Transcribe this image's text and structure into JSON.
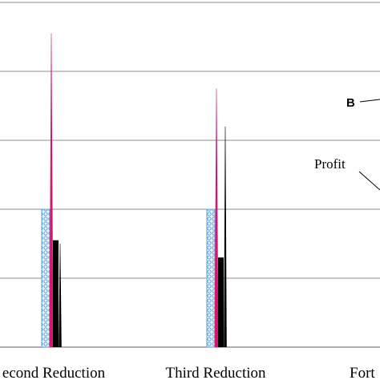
{
  "chart_data": {
    "type": "bar",
    "title": "",
    "xlabel": "",
    "ylabel": "",
    "ylim": [
      0,
      5
    ],
    "grid": true,
    "categories": [
      "Second Reduction",
      "Third Reduction",
      "Forth Reduction"
    ],
    "category_labels_visible": [
      "econd Reduction",
      "Third Reduction",
      "Fort"
    ],
    "series": [
      {
        "name": "",
        "color": "#a9cbe8",
        "pattern": "circles",
        "values": [
          2.0,
          2.0,
          null
        ]
      },
      {
        "name": "",
        "color": "#d6156f",
        "style": "spike",
        "values": [
          4.55,
          3.75,
          null
        ]
      },
      {
        "name": "",
        "color": "#000000",
        "values": [
          1.55,
          1.3,
          null
        ]
      },
      {
        "name": "",
        "color": "#000000",
        "style": "spike",
        "values": [
          1.5,
          3.2,
          null
        ]
      }
    ],
    "annotations": [
      {
        "text": "B"
      },
      {
        "text": "Profit"
      }
    ]
  }
}
